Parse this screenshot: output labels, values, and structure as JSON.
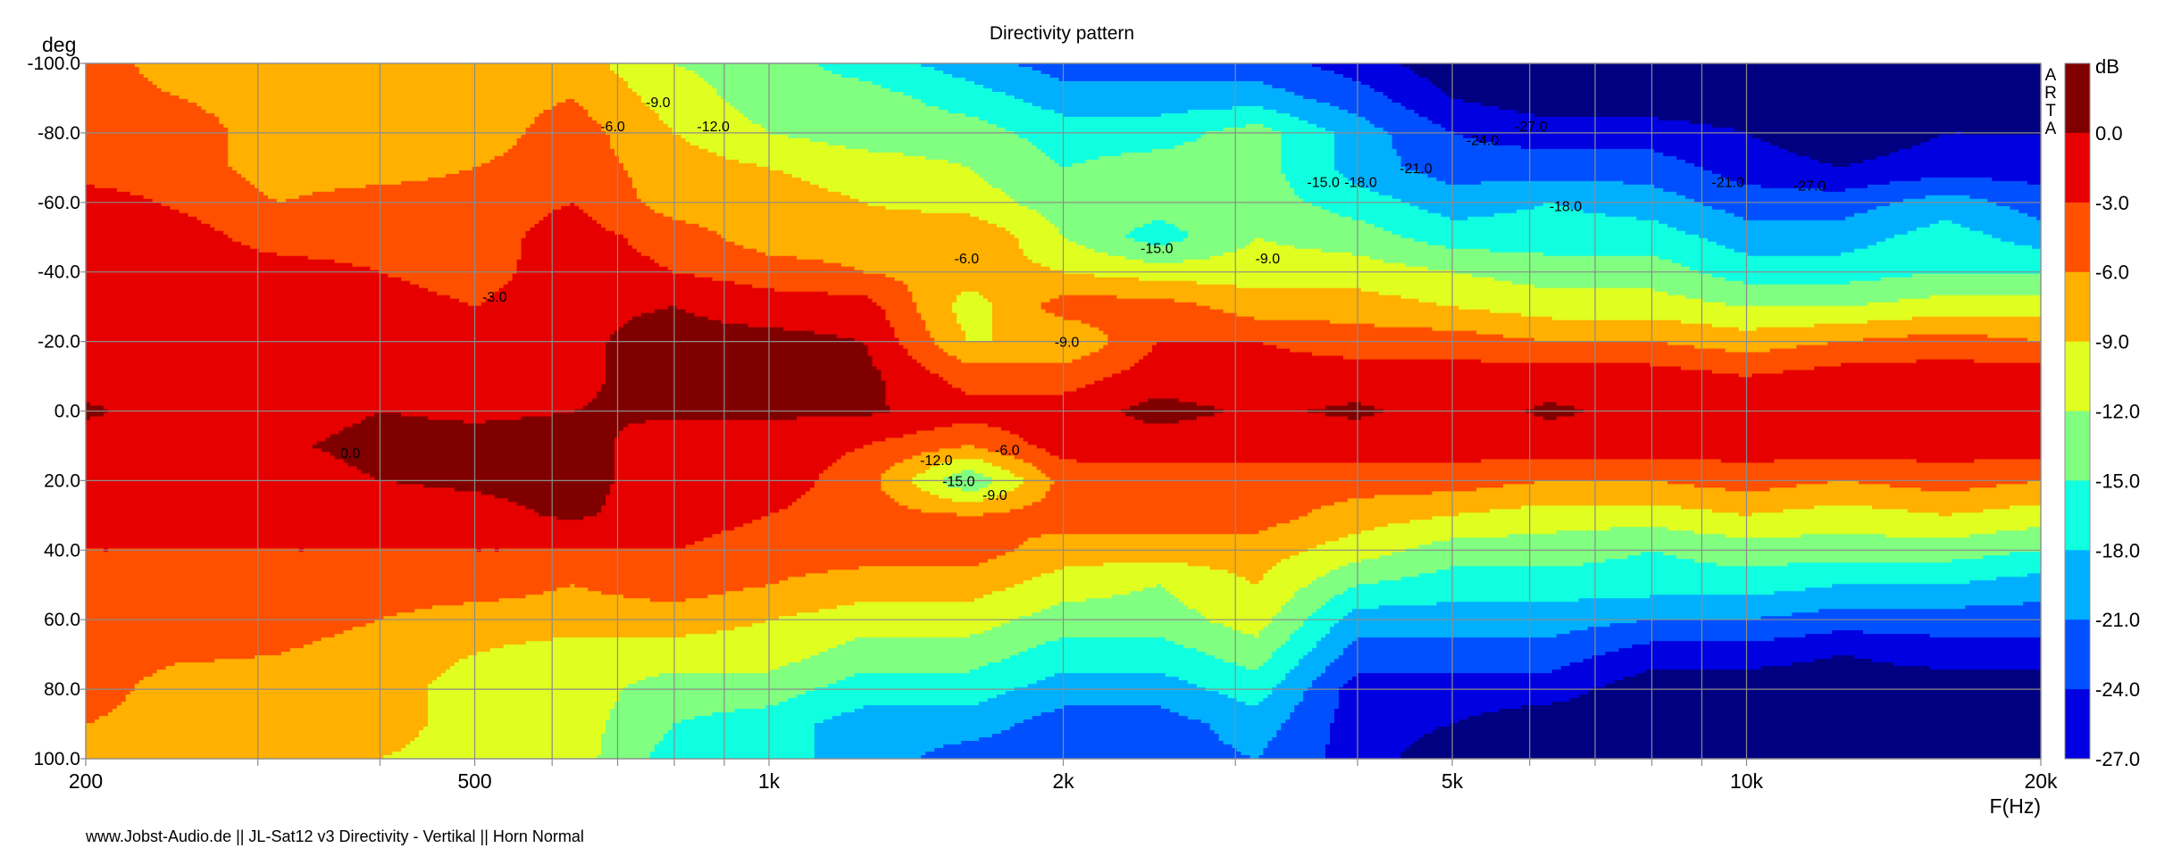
{
  "chart_data": {
    "type": "heatmap",
    "subtype": "filled-contour",
    "title": "Directivity pattern",
    "xlabel": "F(Hz)",
    "ylabel": "deg",
    "xscale": "log",
    "xlim": [
      200,
      20000
    ],
    "ylim": [
      -100,
      100
    ],
    "x_tick_values": [
      200,
      500,
      1000,
      2000,
      5000,
      10000,
      20000
    ],
    "x_tick_labels": [
      "200",
      "500",
      "1k",
      "2k",
      "5k",
      "10k",
      "20k"
    ],
    "y_tick_values": [
      -100,
      -80,
      -60,
      -40,
      -20,
      0,
      20,
      40,
      60,
      80,
      100
    ],
    "y_tick_labels": [
      "-100.0",
      "-80.0",
      "-60.0",
      "-40.0",
      "-20.0",
      "0.0",
      "20.0",
      "40.0",
      "60.0",
      "80.0",
      "100.0"
    ],
    "x_gridlines": [
      200,
      300,
      400,
      500,
      600,
      700,
      800,
      900,
      1000,
      2000,
      3000,
      4000,
      5000,
      6000,
      7000,
      8000,
      9000,
      10000,
      20000
    ],
    "y_gridlines": [
      -100,
      -80,
      -60,
      -40,
      -20,
      0,
      20,
      40,
      60,
      80,
      100
    ],
    "grid": true,
    "colorbar": {
      "label": "dB",
      "levels": [
        0,
        -3,
        -6,
        -9,
        -12,
        -15,
        -18,
        -21,
        -24,
        -27
      ],
      "level_labels": [
        "0.0",
        "-3.0",
        "-6.0",
        "-9.0",
        "-12.0",
        "-15.0",
        "-18.0",
        "-21.0",
        "-24.0",
        "-27.0"
      ],
      "colors": [
        "#800000",
        "#e60000",
        "#ff5000",
        "#ffb000",
        "#e0ff20",
        "#80ff80",
        "#10ffe0",
        "#00b0ff",
        "#0050ff",
        "#0000e0",
        "#000080"
      ],
      "placement": "right"
    },
    "watermark": [
      "A",
      "R",
      "T",
      "A"
    ],
    "frequencies": [
      200,
      250,
      315,
      400,
      500,
      630,
      800,
      1000,
      1250,
      1600,
      2000,
      2500,
      3150,
      4000,
      5000,
      6300,
      8000,
      10000,
      12500,
      16000,
      20000
    ],
    "angles": [
      -100,
      -90,
      -80,
      -70,
      -60,
      -50,
      -40,
      -30,
      -20,
      -10,
      0,
      10,
      20,
      30,
      40,
      50,
      60,
      70,
      80,
      90,
      100
    ],
    "values_db_by_frequency": [
      [
        -4.5,
        -4.5,
        -4.5,
        -4.5,
        -1.5,
        -1.5,
        -1.5,
        -1.5,
        -1.5,
        -1.5,
        0.5,
        -1.5,
        -1.5,
        -1.5,
        -3,
        -4.5,
        -4.5,
        -4.5,
        -4.5,
        -6,
        -7.5
      ],
      [
        -7.5,
        -6,
        -4.5,
        -4.5,
        -3.5,
        -1.5,
        -1.5,
        -1.5,
        -1.5,
        -1.5,
        -1.5,
        -1.5,
        -1.5,
        -1.5,
        -3,
        -4.5,
        -4.5,
        -5.5,
        -7.5,
        -7.5,
        -7.5
      ],
      [
        -7.5,
        -7.5,
        -7.5,
        -7.5,
        -6,
        -4.5,
        -1.5,
        -1.5,
        -1.5,
        -1.5,
        -1.5,
        -0.5,
        -1.5,
        -1.5,
        -3,
        -4.5,
        -4.5,
        -6,
        -7.5,
        -7.5,
        -7.5
      ],
      [
        -9,
        -7.5,
        -7.5,
        -7.5,
        -4.5,
        -4.5,
        -3,
        -1.5,
        -1.5,
        -1.5,
        0,
        1,
        0,
        -1.5,
        -3,
        -4.5,
        -6,
        -7.5,
        -7.5,
        -7.5,
        -9
      ],
      [
        -7.5,
        -7.5,
        -7.5,
        -6,
        -4.5,
        -4.5,
        -4.5,
        -3,
        -1.5,
        -1.5,
        -0.5,
        1,
        0.5,
        -1,
        -3,
        -4.5,
        -7.5,
        -9,
        -10.5,
        -10.5,
        -10.5
      ],
      [
        -7.5,
        -6,
        -4.5,
        -4.5,
        -3,
        -1.5,
        -1,
        -0.5,
        -0.5,
        -0.5,
        0,
        1,
        1,
        0.5,
        -3,
        -6,
        -7.5,
        -10.5,
        -10.5,
        -10.5,
        -10.5
      ],
      [
        -12,
        -10.5,
        -9,
        -7.5,
        -7.5,
        -4.5,
        -3,
        0,
        1,
        1,
        0.5,
        -1.5,
        -1.5,
        -1.5,
        -3,
        -4.5,
        -7.5,
        -10.5,
        -13.5,
        -15,
        -16.5
      ],
      [
        -13.5,
        -13.5,
        -12,
        -9,
        -7.5,
        -7.5,
        -4.5,
        -1.5,
        1,
        1,
        0.5,
        -1.5,
        -1.5,
        -3,
        -4.5,
        -6,
        -9,
        -10.5,
        -13.5,
        -16.5,
        -16.5
      ],
      [
        -16.5,
        -13.5,
        -13.5,
        -10.5,
        -9,
        -7.5,
        -6,
        -1.5,
        0,
        1,
        0.5,
        -3,
        -4.5,
        -4.5,
        -4.5,
        -7.5,
        -10.5,
        -13.5,
        -16.5,
        -19.5,
        -19.5
      ],
      [
        -19.5,
        -16.5,
        -13.5,
        -12,
        -10.5,
        -6,
        -7.5,
        -10.5,
        -9,
        -4.5,
        -1.5,
        -6,
        -15,
        -6,
        -4.5,
        -7.5,
        -10.5,
        -13.5,
        -16.5,
        -19.5,
        -22.5
      ],
      [
        -22.5,
        -19.5,
        -16.5,
        -15,
        -13.5,
        -12,
        -9,
        -4.5,
        -9,
        -4.5,
        -1.5,
        -1.5,
        -5,
        -4.5,
        -7.5,
        -10.5,
        -13.5,
        -16.5,
        -19.5,
        -22.5,
        -22.5
      ],
      [
        -22.5,
        -19.5,
        -16.5,
        -13.5,
        -13.5,
        -16.5,
        -10.5,
        -4.5,
        -3,
        -1.5,
        1,
        -1.5,
        -4.5,
        -4.5,
        -7.5,
        -12,
        -13.5,
        -16.5,
        -19.5,
        -22.5,
        -22.5
      ],
      [
        -22.5,
        -19.5,
        -13.5,
        -13.5,
        -13.5,
        -12,
        -10.5,
        -7.5,
        -3,
        -1.5,
        -0.5,
        -1.5,
        -4.5,
        -4.5,
        -7.5,
        -9,
        -10.5,
        -13.5,
        -16.5,
        -19.5,
        -21
      ],
      [
        -25.5,
        -22.5,
        -19.5,
        -19.5,
        -16.5,
        -13.5,
        -10.5,
        -7.5,
        -4.5,
        -1.5,
        0.5,
        -1.5,
        -4.5,
        -7.5,
        -10.5,
        -15,
        -19.5,
        -22.5,
        -25.5,
        -25.5,
        -25.5
      ],
      [
        -29,
        -27,
        -24,
        -22.5,
        -19.5,
        -16.5,
        -12,
        -9,
        -4.5,
        -1.5,
        -1.5,
        -1.5,
        -4.5,
        -9,
        -13.5,
        -16.5,
        -19.5,
        -22.5,
        -25.5,
        -27,
        -29
      ],
      [
        -29,
        -29,
        -25.5,
        -22.5,
        -18,
        -16.5,
        -13.5,
        -10.5,
        -6,
        -1.5,
        0.5,
        -1.5,
        -6,
        -10.5,
        -13.5,
        -16.5,
        -19.5,
        -22.5,
        -25.5,
        -29,
        -29
      ],
      [
        -29,
        -29,
        -25.5,
        -22.5,
        -19.5,
        -16.5,
        -13.5,
        -10.5,
        -6,
        -1.5,
        -1,
        -1.5,
        -6,
        -10.5,
        -15,
        -16.5,
        -21,
        -25.5,
        -29,
        -29,
        -29
      ],
      [
        -29,
        -29,
        -27,
        -25.5,
        -22.5,
        -19.5,
        -16.5,
        -12,
        -7.5,
        -3,
        -1.5,
        -1.5,
        -4.5,
        -9,
        -13.5,
        -16.5,
        -21,
        -25.5,
        -29,
        -29,
        -29
      ],
      [
        -29,
        -29,
        -29,
        -27,
        -22.5,
        -19.5,
        -16.5,
        -12,
        -6,
        -1.5,
        -1.5,
        -1.5,
        -6,
        -10.5,
        -13.5,
        -18,
        -22.5,
        -27,
        -29,
        -29,
        -29
      ],
      [
        -29,
        -29,
        -27,
        -25.5,
        -19.5,
        -16.5,
        -15,
        -10.5,
        -4.5,
        -1.5,
        -1.5,
        -1.5,
        -4.5,
        -9,
        -13.5,
        -18,
        -22.5,
        -25.5,
        -29,
        -29,
        -29
      ],
      [
        -29,
        -29,
        -27,
        -25.5,
        -22.5,
        -19.5,
        -15,
        -10.5,
        -6,
        -1.5,
        -1.5,
        -1.5,
        -6,
        -10.5,
        -15,
        -19.5,
        -22.5,
        -25.5,
        -29,
        -29,
        -29
      ]
    ],
    "contour_labels": [
      {
        "text": "-9.0",
        "freq": 770,
        "deg": -89
      },
      {
        "text": "-12.0",
        "freq": 877,
        "deg": -82
      },
      {
        "text": "-6.0",
        "freq": 692,
        "deg": -82
      },
      {
        "text": "-3.0",
        "freq": 524,
        "deg": -33
      },
      {
        "text": "0.0",
        "freq": 373,
        "deg": 12
      },
      {
        "text": "-6.0",
        "freq": 1593,
        "deg": -44
      },
      {
        "text": "-9.0",
        "freq": 2017,
        "deg": -20
      },
      {
        "text": "-15.0",
        "freq": 2493,
        "deg": -47
      },
      {
        "text": "-9.0",
        "freq": 3237,
        "deg": -44
      },
      {
        "text": "-15.0",
        "freq": 3690,
        "deg": -66
      },
      {
        "text": "-18.0",
        "freq": 4030,
        "deg": -66
      },
      {
        "text": "-21.0",
        "freq": 4590,
        "deg": -70
      },
      {
        "text": "-24.0",
        "freq": 5370,
        "deg": -78
      },
      {
        "text": "-27.0",
        "freq": 6020,
        "deg": -82
      },
      {
        "text": "-18.0",
        "freq": 6530,
        "deg": -59
      },
      {
        "text": "-21.0",
        "freq": 9570,
        "deg": -66
      },
      {
        "text": "-27.0",
        "freq": 11600,
        "deg": -65
      },
      {
        "text": "-6.0",
        "freq": 1753,
        "deg": 11
      },
      {
        "text": "-12.0",
        "freq": 1483,
        "deg": 14
      },
      {
        "text": "-15.0",
        "freq": 1563,
        "deg": 20
      },
      {
        "text": "-9.0",
        "freq": 1702,
        "deg": 24
      }
    ]
  },
  "footer": "www.Jobst-Audio.de  ||  JL-Sat12 v3  Directivity - Vertikal  ||  Horn Normal"
}
